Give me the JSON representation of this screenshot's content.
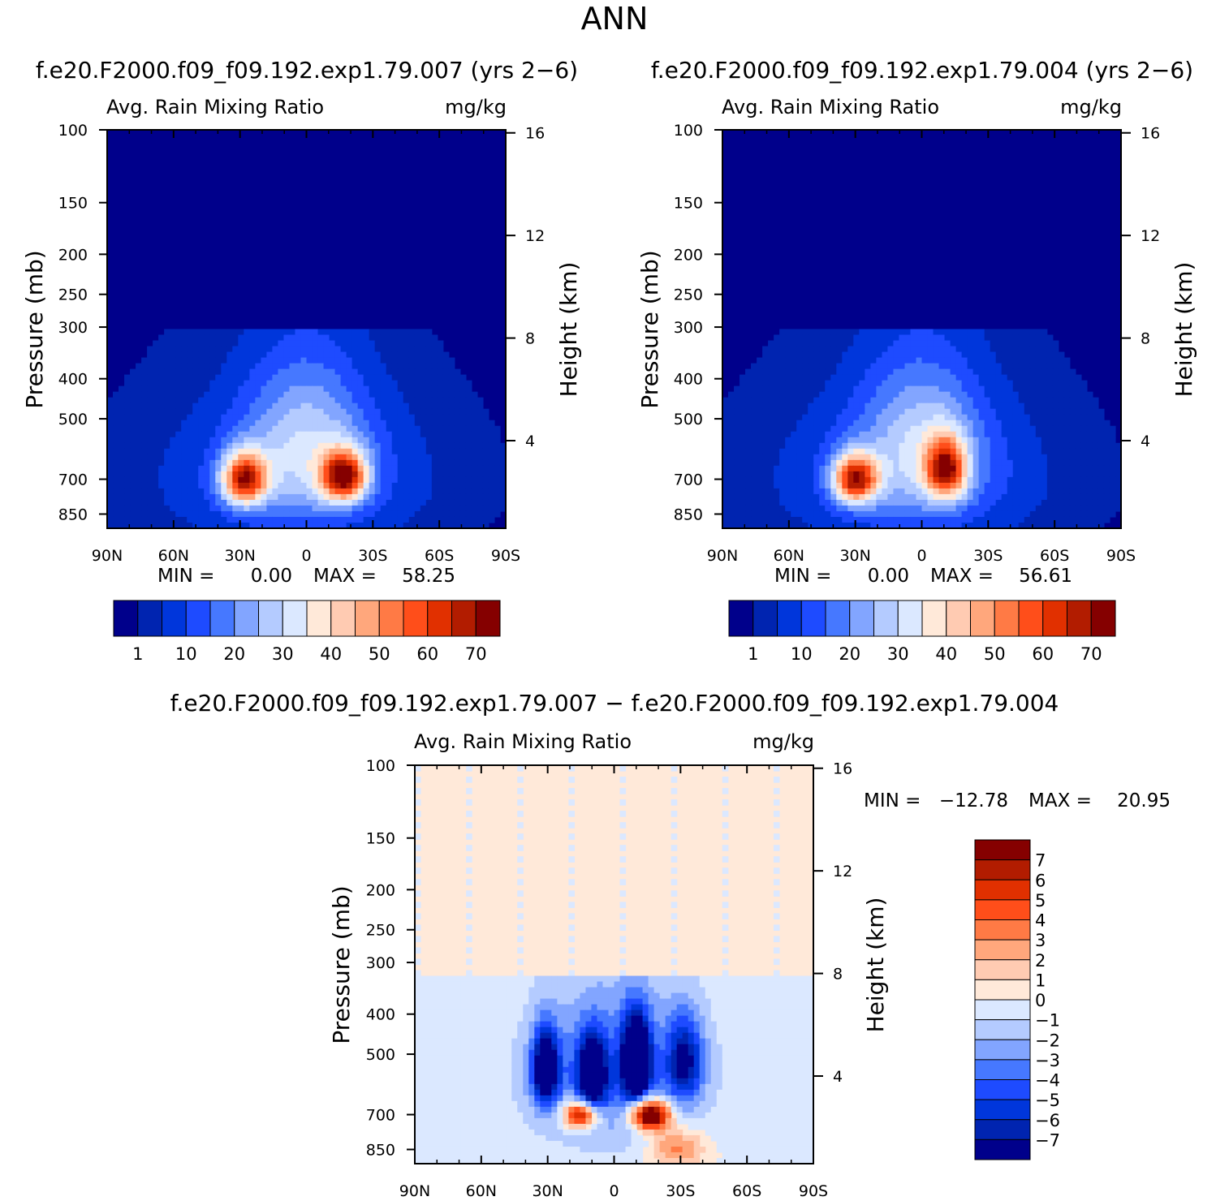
{
  "page": {
    "title": "ANN"
  },
  "colors": {
    "abs_fill": [
      "#00008b",
      "#0024b0",
      "#0036db",
      "#1e4bff",
      "#4678ff",
      "#82a5ff",
      "#b4cbff",
      "#dbe8ff",
      "#ffe9d9",
      "#ffcbb2",
      "#ffa77c",
      "#ff7a45",
      "#ff4e1a",
      "#e13000",
      "#b21c00",
      "#850000"
    ],
    "diff_fill": [
      "#00008b",
      "#0024b0",
      "#0036db",
      "#1e4bff",
      "#4678ff",
      "#82a5ff",
      "#b4cbff",
      "#dbe8ff",
      "#ffe9d9",
      "#ffcbb2",
      "#ffa77c",
      "#ff7a45",
      "#ff4e1a",
      "#e13000",
      "#b21c00",
      "#850000"
    ]
  },
  "chart_data": [
    {
      "id": "case1",
      "type": "heatmap",
      "case_title": "f.e20.F2000.f09_f09.192.exp1.79.007 (yrs 2−6)",
      "left_title": "Avg. Rain Mixing Ratio",
      "right_title": "mg/kg",
      "ylabel": "Pressure (mb)",
      "ylabel_right": "Height (km)",
      "xticks": [
        "90N",
        "60N",
        "30N",
        "0",
        "30S",
        "60S",
        "90S"
      ],
      "yticks": [
        "100",
        "150",
        "200",
        "250",
        "300",
        "400",
        "500",
        "700",
        "850"
      ],
      "yticks_right": [
        "16",
        "12",
        "8",
        "4"
      ],
      "min_label": "MIN =",
      "min_value": "0.00",
      "max_label": "MAX =",
      "max_value": "58.25",
      "colorbar_labels": [
        "1",
        "10",
        "20",
        "30",
        "40",
        "50",
        "60",
        "70"
      ],
      "blobs": [
        {
          "lat": -17,
          "p": 690,
          "peak": 58.25,
          "slat": 10,
          "sp": 95
        },
        {
          "lat": 28,
          "p": 700,
          "peak": 55,
          "slat": 10,
          "sp": 100
        },
        {
          "lat": 0,
          "p": 560,
          "peak": 20,
          "slat": 28,
          "sp": 260
        },
        {
          "lat": 5,
          "p": 700,
          "peak": 14,
          "slat": 60,
          "sp": 300
        }
      ]
    },
    {
      "id": "case2",
      "type": "heatmap",
      "case_title": "f.e20.F2000.f09_f09.192.exp1.79.004 (yrs 2−6)",
      "left_title": "Avg. Rain Mixing Ratio",
      "right_title": "mg/kg",
      "ylabel": "Pressure (mb)",
      "ylabel_right": "Height (km)",
      "xticks": [
        "90N",
        "60N",
        "30N",
        "0",
        "30S",
        "60S",
        "90S"
      ],
      "yticks": [
        "100",
        "150",
        "200",
        "250",
        "300",
        "400",
        "500",
        "700",
        "850"
      ],
      "yticks_right": [
        "16",
        "12",
        "8",
        "4"
      ],
      "min_label": "MIN =",
      "min_value": "0.00",
      "max_label": "MAX =",
      "max_value": "56.61",
      "colorbar_labels": [
        "1",
        "10",
        "20",
        "30",
        "40",
        "50",
        "60",
        "70"
      ],
      "blobs": [
        {
          "lat": -11,
          "p": 660,
          "peak": 50,
          "slat": 9,
          "sp": 110
        },
        {
          "lat": 30,
          "p": 700,
          "peak": 56.61,
          "slat": 10,
          "sp": 95
        },
        {
          "lat": 0,
          "p": 560,
          "peak": 20,
          "slat": 28,
          "sp": 260
        },
        {
          "lat": 5,
          "p": 700,
          "peak": 14,
          "slat": 60,
          "sp": 300
        }
      ]
    },
    {
      "id": "diff",
      "type": "heatmap",
      "case_title": "f.e20.F2000.f09_f09.192.exp1.79.007 − f.e20.F2000.f09_f09.192.exp1.79.004",
      "left_title": "Avg. Rain Mixing Ratio",
      "right_title": "mg/kg",
      "ylabel": "Pressure (mb)",
      "ylabel_right": "Height (km)",
      "xticks": [
        "90N",
        "60N",
        "30N",
        "0",
        "30S",
        "60S",
        "90S"
      ],
      "yticks": [
        "100",
        "150",
        "200",
        "250",
        "300",
        "400",
        "500",
        "700",
        "850"
      ],
      "yticks_right": [
        "16",
        "12",
        "8",
        "4"
      ],
      "min_label": "MIN =",
      "min_value": "−12.78",
      "max_label": "MAX =",
      "max_value": "20.95",
      "colorbar_labels": [
        "7",
        "6",
        "5",
        "4",
        "3",
        "2",
        "1",
        "0",
        "−1",
        "−2",
        "−3",
        "−4",
        "−5",
        "−6",
        "−7"
      ],
      "blobs": [
        {
          "lat": -16,
          "p": 700,
          "peak": 12,
          "slat": 9,
          "sp": 60
        },
        {
          "lat": 15,
          "p": 700,
          "peak": 9,
          "slat": 8,
          "sp": 55
        },
        {
          "lat": -28,
          "p": 840,
          "peak": 4,
          "slat": 12,
          "sp": 90
        },
        {
          "lat": -10,
          "p": 520,
          "peak": -11,
          "slat": 6,
          "sp": 120
        },
        {
          "lat": 10,
          "p": 560,
          "peak": -9,
          "slat": 6,
          "sp": 110
        },
        {
          "lat": 31,
          "p": 540,
          "peak": -9,
          "slat": 6,
          "sp": 110
        },
        {
          "lat": -32,
          "p": 520,
          "peak": -6,
          "slat": 8,
          "sp": 120
        },
        {
          "lat": 0,
          "p": 560,
          "peak": -4,
          "slat": 40,
          "sp": 260
        }
      ]
    }
  ]
}
